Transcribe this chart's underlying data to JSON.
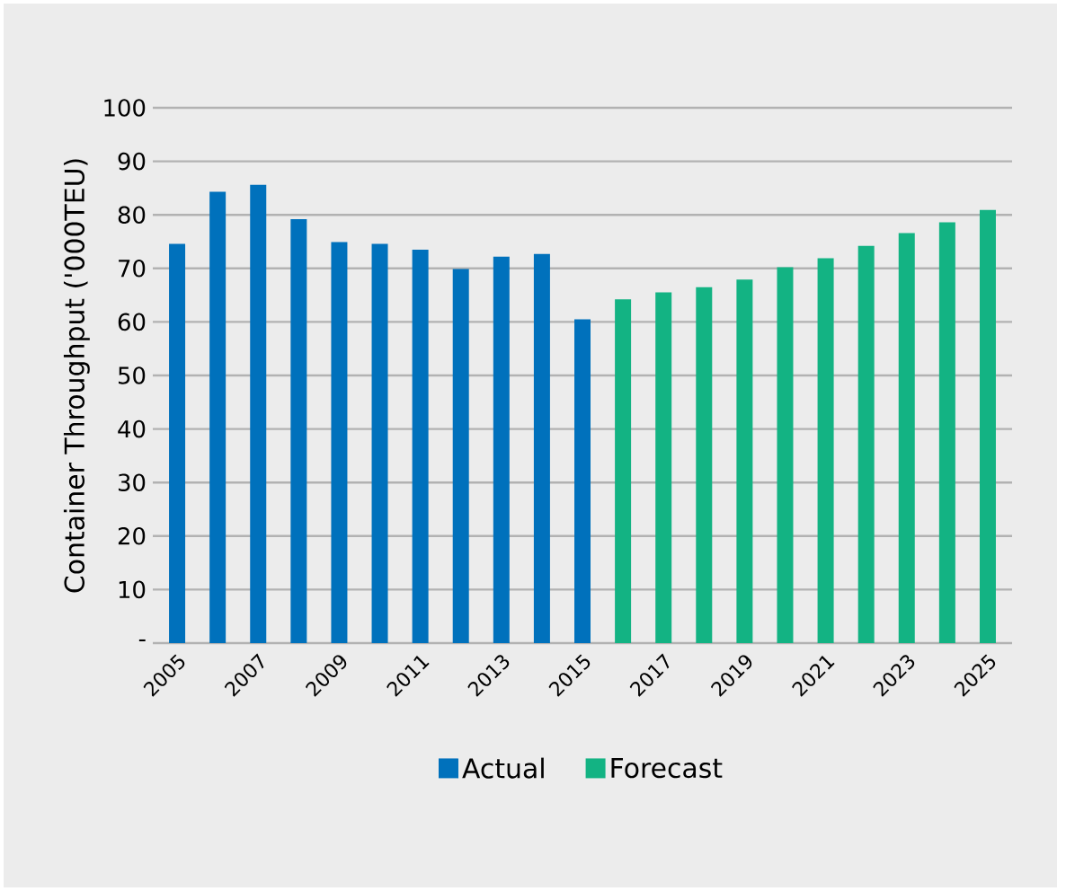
{
  "chart_data": {
    "type": "bar",
    "ylabel": "Container Throughput ('000TEU)",
    "categories": [
      "2005",
      null,
      "2007",
      null,
      "2009",
      null,
      "2011",
      null,
      "2013",
      null,
      "2015",
      null,
      "2017",
      null,
      "2019",
      null,
      "2021",
      null,
      "2023",
      null,
      "2025"
    ],
    "series": [
      {
        "name": "Actual",
        "color": "#0071bc",
        "values": [
          74.6,
          84.3,
          85.6,
          79.2,
          74.9,
          74.6,
          73.5,
          69.9,
          72.2,
          72.7,
          60.5,
          null,
          null,
          null,
          null,
          null,
          null,
          null,
          null,
          null,
          null
        ]
      },
      {
        "name": "Forecast",
        "color": "#13b383",
        "values": [
          null,
          null,
          null,
          null,
          null,
          null,
          null,
          null,
          null,
          null,
          null,
          64.2,
          65.5,
          66.5,
          67.9,
          70.2,
          71.9,
          74.2,
          76.6,
          78.6,
          80.9
        ]
      }
    ],
    "ylim": [
      0,
      100
    ],
    "yticks": [
      {
        "value": 0,
        "label": "-"
      },
      10,
      20,
      30,
      40,
      50,
      60,
      70,
      80,
      90,
      100
    ],
    "grid": "y",
    "legend": "bottom"
  }
}
